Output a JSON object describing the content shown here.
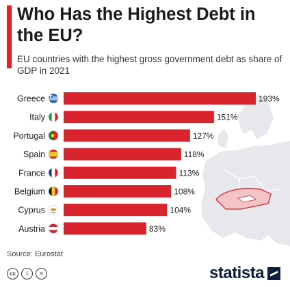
{
  "header": {
    "title": "Who Has the Highest Debt in the EU?",
    "subtitle": "EU countries with the highest gross government debt as share of GDP in 2021"
  },
  "colors": {
    "bar": "#d9232d",
    "accent": "#d9232d",
    "brand": "#0f1e3d"
  },
  "chart_data": {
    "type": "bar",
    "orientation": "horizontal",
    "title": "Who Has the Highest Debt in the EU?",
    "subtitle": "EU countries with the highest gross government debt as share of GDP in 2021",
    "categories": [
      "Greece",
      "Italy",
      "Portugal",
      "Spain",
      "France",
      "Belgium",
      "Cyprus",
      "Austria"
    ],
    "values": [
      193,
      151,
      127,
      118,
      113,
      108,
      104,
      83
    ],
    "value_labels": [
      "193%",
      "151%",
      "127%",
      "118%",
      "113%",
      "108%",
      "104%",
      "83%"
    ],
    "flags": [
      "greece-flag-icon",
      "italy-flag-icon",
      "portugal-flag-icon",
      "spain-flag-icon",
      "france-flag-icon",
      "belgium-flag-icon",
      "cyprus-flag-icon",
      "austria-flag-icon"
    ],
    "xlim": [
      0,
      193
    ],
    "grid": false,
    "legend": "none"
  },
  "footer": {
    "source": "Source: Eurostat",
    "license_icons": [
      "cc-icon",
      "attribution-icon",
      "no-derivatives-icon"
    ],
    "brand": "statista"
  }
}
